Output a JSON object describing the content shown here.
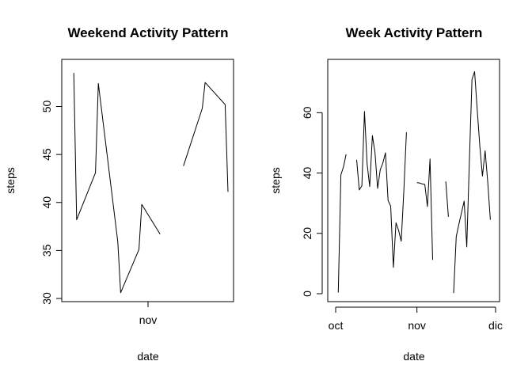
{
  "chart_data": [
    {
      "type": "line",
      "title": "Weekend Activity Pattern",
      "xlabel": "date",
      "ylabel": "steps",
      "ylim": [
        30,
        54
      ],
      "xlim": [
        0,
        28
      ],
      "yticks": [
        30,
        35,
        40,
        45,
        50
      ],
      "xticks": [
        {
          "x": 14,
          "label": "nov"
        }
      ],
      "segments": [
        [
          {
            "x": 1,
            "y": 53.5
          },
          {
            "x": 1.5,
            "y": 38.2
          },
          {
            "x": 4.8,
            "y": 43.1
          },
          {
            "x": 5.3,
            "y": 52.4
          },
          {
            "x": 8.7,
            "y": 35.9
          },
          {
            "x": 9.2,
            "y": 30.6
          },
          {
            "x": 12.4,
            "y": 35.1
          },
          {
            "x": 12.9,
            "y": 39.8
          },
          {
            "x": 16.1,
            "y": 36.7
          }
        ],
        [
          {
            "x": 20.2,
            "y": 43.8
          },
          {
            "x": 23.5,
            "y": 49.8
          },
          {
            "x": 24.0,
            "y": 52.5
          },
          {
            "x": 27.5,
            "y": 50.2
          },
          {
            "x": 28.0,
            "y": 41.1
          }
        ]
      ]
    },
    {
      "type": "line",
      "title": "Week Activity Pattern",
      "xlabel": "date",
      "ylabel": "steps",
      "ylim": [
        0,
        74
      ],
      "xlim": [
        0,
        61
      ],
      "yticks": [
        0,
        20,
        40,
        60
      ],
      "xticks": [
        {
          "x": 0,
          "label": "oct"
        },
        {
          "x": 31,
          "label": "nov"
        },
        {
          "x": 61,
          "label": "dic"
        }
      ],
      "segments": [
        [
          {
            "x": 1,
            "y": 0.4
          },
          {
            "x": 2,
            "y": 39.4
          },
          {
            "x": 3,
            "y": 42.1
          },
          {
            "x": 4,
            "y": 46.2
          }
        ],
        [
          {
            "x": 8,
            "y": 44.4
          },
          {
            "x": 9,
            "y": 34.4
          },
          {
            "x": 10,
            "y": 35.8
          },
          {
            "x": 11,
            "y": 60.4
          },
          {
            "x": 12,
            "y": 43.1
          },
          {
            "x": 13,
            "y": 35.5
          },
          {
            "x": 14,
            "y": 52.4
          },
          {
            "x": 15,
            "y": 46.7
          },
          {
            "x": 16,
            "y": 34.9
          },
          {
            "x": 17,
            "y": 41.1
          },
          {
            "x": 18,
            "y": 43.3
          },
          {
            "x": 19,
            "y": 46.7
          },
          {
            "x": 20,
            "y": 30.9
          },
          {
            "x": 21,
            "y": 29.0
          },
          {
            "x": 22,
            "y": 8.7
          },
          {
            "x": 23,
            "y": 23.5
          },
          {
            "x": 24,
            "y": 21.0
          },
          {
            "x": 25,
            "y": 17.4
          },
          {
            "x": 26,
            "y": 34.0
          },
          {
            "x": 27,
            "y": 53.5
          }
        ],
        [
          {
            "x": 31,
            "y": 36.8
          },
          {
            "x": 32,
            "y": 36.7
          },
          {
            "x": 33,
            "y": 36.4
          },
          {
            "x": 34,
            "y": 36.2
          },
          {
            "x": 35,
            "y": 28.9
          },
          {
            "x": 36,
            "y": 44.7
          },
          {
            "x": 37,
            "y": 11.2
          }
        ],
        [
          {
            "x": 42,
            "y": 37.2
          },
          {
            "x": 43,
            "y": 25.5
          }
        ],
        [
          {
            "x": 45,
            "y": 0.2
          },
          {
            "x": 46,
            "y": 18.9
          },
          {
            "x": 47,
            "y": 23.0
          },
          {
            "x": 49,
            "y": 30.7
          },
          {
            "x": 50,
            "y": 15.5
          },
          {
            "x": 51,
            "y": 44.0
          },
          {
            "x": 52,
            "y": 71.0
          },
          {
            "x": 53,
            "y": 73.6
          },
          {
            "x": 54,
            "y": 61.0
          },
          {
            "x": 55,
            "y": 48.9
          },
          {
            "x": 56,
            "y": 39.0
          },
          {
            "x": 57,
            "y": 47.4
          },
          {
            "x": 58,
            "y": 37.0
          },
          {
            "x": 59,
            "y": 24.5
          }
        ]
      ]
    }
  ]
}
